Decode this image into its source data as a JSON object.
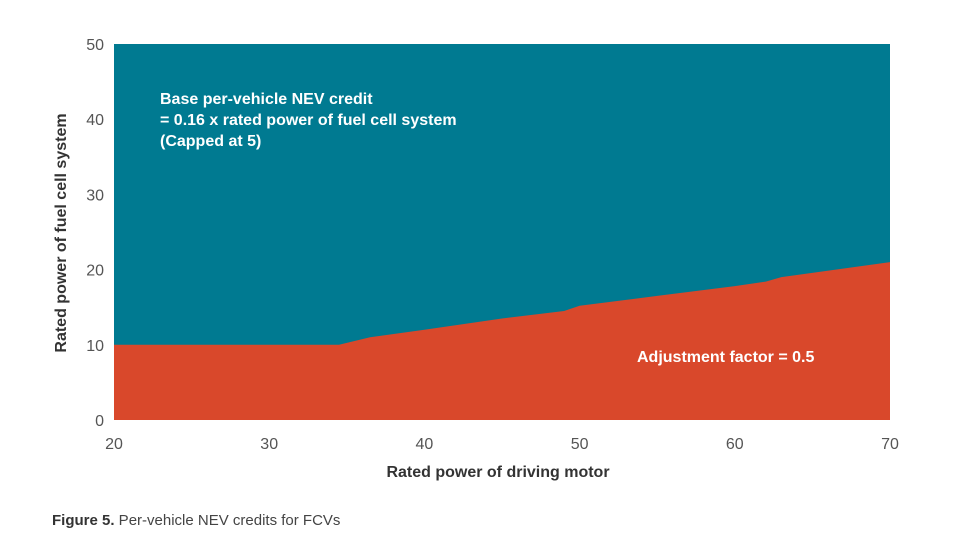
{
  "chart_data": {
    "type": "area",
    "xlabel": "Rated power of driving motor",
    "ylabel": "Rated power of fuel cell system",
    "xlim": [
      20,
      70
    ],
    "ylim": [
      0,
      50
    ],
    "x_ticks": [
      "20",
      "30",
      "40",
      "50",
      "60",
      "70"
    ],
    "y_ticks": [
      "0",
      "10",
      "20",
      "30",
      "40",
      "50"
    ],
    "grid": false,
    "boundary": {
      "x": [
        20,
        34.5,
        36.5,
        40,
        45,
        49,
        50,
        55,
        60,
        62,
        63,
        70
      ],
      "y": [
        10,
        10,
        11,
        12,
        13.5,
        14.5,
        15.2,
        16.5,
        17.8,
        18.4,
        19,
        21
      ]
    },
    "regions": {
      "upper": {
        "color": "#007a91",
        "label_lines": [
          "Base per-vehicle NEV credit",
          "= 0.16 x  rated power of fuel cell system",
          "(Capped at 5)"
        ]
      },
      "lower": {
        "color": "#d9482b",
        "label": "Adjustment factor = 0.5"
      }
    }
  },
  "caption": {
    "figure_number": "Figure 5.",
    "text": " Per-vehicle NEV credits for FCVs"
  }
}
